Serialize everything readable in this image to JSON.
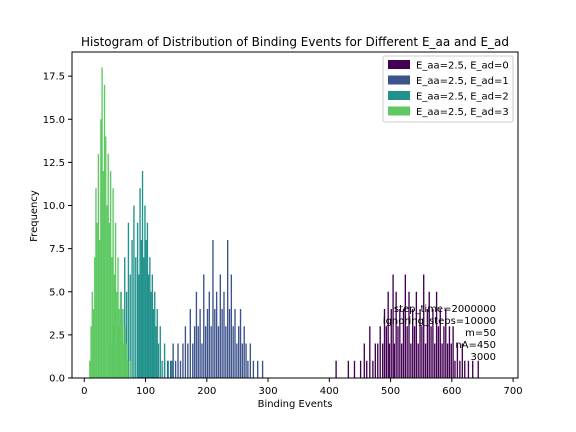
{
  "chart_data": {
    "type": "histogram",
    "title": "Histogram of Distribution of Binding Events for Different E_aa and E_ad",
    "xlabel": "Binding Events",
    "ylabel": "Frequency",
    "xlim": [
      -20,
      708
    ],
    "ylim": [
      0,
      18.9
    ],
    "xticks": [
      0,
      100,
      200,
      300,
      400,
      500,
      600,
      700
    ],
    "xtick_labels": [
      "0",
      "100",
      "200",
      "300",
      "400",
      "500",
      "600",
      "700"
    ],
    "yticks": [
      0,
      2.5,
      5,
      7.5,
      10,
      12.5,
      15,
      17.5
    ],
    "ytick_labels": [
      "0.0",
      "2.5",
      "5.0",
      "7.5",
      "10.0",
      "12.5",
      "15.0",
      "17.5"
    ],
    "grid": false,
    "legend_position": "top-right",
    "series": [
      {
        "name": "E_aa=2.5, E_ad=0",
        "color": "#440154",
        "bins": [
          [
            410,
            1
          ],
          [
            430,
            1
          ],
          [
            440,
            1
          ],
          [
            450,
            1
          ],
          [
            456,
            2
          ],
          [
            460,
            1
          ],
          [
            465,
            3
          ],
          [
            470,
            1
          ],
          [
            474,
            2
          ],
          [
            478,
            2
          ],
          [
            482,
            3
          ],
          [
            486,
            2
          ],
          [
            489,
            4
          ],
          [
            492,
            3
          ],
          [
            495,
            5
          ],
          [
            497,
            2
          ],
          [
            500,
            4
          ],
          [
            503,
            6
          ],
          [
            505,
            2
          ],
          [
            508,
            5
          ],
          [
            511,
            3
          ],
          [
            514,
            4
          ],
          [
            517,
            2
          ],
          [
            520,
            4
          ],
          [
            523,
            6
          ],
          [
            526,
            3
          ],
          [
            529,
            5
          ],
          [
            532,
            2
          ],
          [
            535,
            4
          ],
          [
            538,
            3
          ],
          [
            541,
            5
          ],
          [
            544,
            2
          ],
          [
            547,
            4
          ],
          [
            550,
            3
          ],
          [
            553,
            6
          ],
          [
            556,
            2
          ],
          [
            559,
            4
          ],
          [
            562,
            5
          ],
          [
            565,
            3
          ],
          [
            568,
            4
          ],
          [
            571,
            2
          ],
          [
            574,
            5
          ],
          [
            577,
            3
          ],
          [
            580,
            4
          ],
          [
            583,
            2
          ],
          [
            586,
            3
          ],
          [
            589,
            4
          ],
          [
            592,
            2
          ],
          [
            595,
            3
          ],
          [
            598,
            2
          ],
          [
            601,
            3
          ],
          [
            604,
            1
          ],
          [
            608,
            2
          ],
          [
            612,
            1
          ],
          [
            616,
            2
          ],
          [
            620,
            1
          ],
          [
            626,
            1
          ],
          [
            633,
            1
          ],
          [
            642,
            1
          ]
        ]
      },
      {
        "name": "E_aa=2.5, E_ad=1",
        "color": "#3b528b",
        "bins": [
          [
            130,
            1
          ],
          [
            135,
            1
          ],
          [
            140,
            1
          ],
          [
            144,
            2
          ],
          [
            148,
            1
          ],
          [
            152,
            2
          ],
          [
            156,
            1
          ],
          [
            160,
            2
          ],
          [
            164,
            3
          ],
          [
            168,
            2
          ],
          [
            172,
            4
          ],
          [
            176,
            2
          ],
          [
            179,
            3
          ],
          [
            182,
            5
          ],
          [
            185,
            3
          ],
          [
            188,
            4
          ],
          [
            191,
            2
          ],
          [
            194,
            6
          ],
          [
            197,
            3
          ],
          [
            200,
            4
          ],
          [
            203,
            5
          ],
          [
            206,
            3
          ],
          [
            209,
            8
          ],
          [
            212,
            4
          ],
          [
            215,
            5
          ],
          [
            218,
            3
          ],
          [
            221,
            6
          ],
          [
            224,
            4
          ],
          [
            227,
            5
          ],
          [
            230,
            3
          ],
          [
            233,
            8
          ],
          [
            236,
            4
          ],
          [
            239,
            6
          ],
          [
            242,
            3
          ],
          [
            245,
            4
          ],
          [
            248,
            2
          ],
          [
            251,
            3
          ],
          [
            254,
            4
          ],
          [
            257,
            2
          ],
          [
            260,
            3
          ],
          [
            263,
            2
          ],
          [
            266,
            1
          ],
          [
            270,
            2
          ],
          [
            275,
            1
          ],
          [
            282,
            1
          ],
          [
            290,
            1
          ]
        ]
      },
      {
        "name": "E_aa=2.5, E_ad=2",
        "color": "#21918c",
        "bins": [
          [
            40,
            1
          ],
          [
            44,
            2
          ],
          [
            47,
            3
          ],
          [
            50,
            2
          ],
          [
            53,
            4
          ],
          [
            56,
            3
          ],
          [
            59,
            5
          ],
          [
            62,
            4
          ],
          [
            65,
            7
          ],
          [
            68,
            5
          ],
          [
            71,
            9
          ],
          [
            74,
            6
          ],
          [
            77,
            8
          ],
          [
            80,
            10
          ],
          [
            83,
            7
          ],
          [
            86,
            9
          ],
          [
            88,
            6
          ],
          [
            90,
            11
          ],
          [
            92,
            8
          ],
          [
            94,
            12
          ],
          [
            96,
            7
          ],
          [
            98,
            10
          ],
          [
            100,
            8
          ],
          [
            102,
            9
          ],
          [
            104,
            6
          ],
          [
            106,
            7
          ],
          [
            108,
            5
          ],
          [
            110,
            6
          ],
          [
            112,
            4
          ],
          [
            114,
            5
          ],
          [
            116,
            3
          ],
          [
            118,
            4
          ],
          [
            120,
            2
          ],
          [
            123,
            3
          ],
          [
            126,
            1
          ],
          [
            130,
            2
          ],
          [
            136,
            1
          ],
          [
            142,
            1
          ]
        ]
      },
      {
        "name": "E_aa=2.5, E_ad=3",
        "color": "#5ec962",
        "bins": [
          [
            8,
            1
          ],
          [
            10,
            3
          ],
          [
            12,
            5
          ],
          [
            14,
            4
          ],
          [
            16,
            7
          ],
          [
            18,
            11
          ],
          [
            20,
            9
          ],
          [
            22,
            13
          ],
          [
            24,
            8
          ],
          [
            26,
            15
          ],
          [
            28,
            18
          ],
          [
            30,
            12
          ],
          [
            32,
            17
          ],
          [
            34,
            14
          ],
          [
            36,
            10
          ],
          [
            38,
            13
          ],
          [
            40,
            9
          ],
          [
            42,
            12
          ],
          [
            44,
            7
          ],
          [
            46,
            11
          ],
          [
            48,
            6
          ],
          [
            50,
            9
          ],
          [
            52,
            5
          ],
          [
            54,
            7
          ],
          [
            56,
            4
          ],
          [
            58,
            5
          ],
          [
            60,
            3
          ],
          [
            62,
            4
          ],
          [
            64,
            2
          ],
          [
            66,
            3
          ],
          [
            68,
            2
          ],
          [
            70,
            1
          ],
          [
            74,
            1
          ]
        ]
      }
    ],
    "annotation": [
      "step_time=2000000",
      "ignoring_steps=10000",
      "m=50",
      "nA=450",
      "3000"
    ]
  }
}
